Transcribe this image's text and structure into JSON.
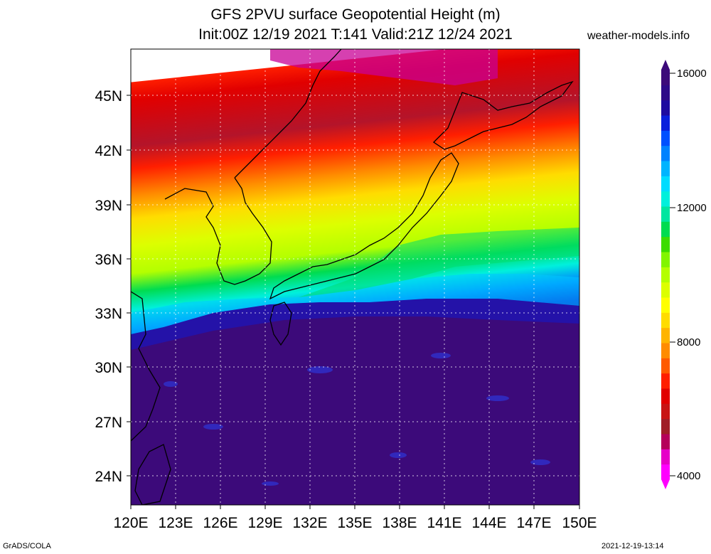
{
  "header": {
    "title": "GFS 2PVU surface Geopotential Height (m)",
    "subtitle": "Init:00Z 12/19 2021 T:141 Valid:21Z 12/24 2021",
    "site": "weather-models.info"
  },
  "map": {
    "lat_labels": [
      "45N",
      "42N",
      "39N",
      "36N",
      "33N",
      "30N",
      "27N",
      "24N"
    ],
    "lon_labels": [
      "120E",
      "123E",
      "126E",
      "129E",
      "132E",
      "135E",
      "138E",
      "141E",
      "144E",
      "147E",
      "150E"
    ],
    "lat_range": [
      22.5,
      47.5
    ],
    "lon_range": [
      120,
      150
    ],
    "region": "Japan / Korea / East China Sea",
    "grid": true
  },
  "colorbar": {
    "labels": [
      "16000",
      "12000",
      "8000",
      "4000"
    ],
    "range": [
      4000,
      16000
    ],
    "colors": [
      "#ff00ff",
      "#e600c8",
      "#b4005a",
      "#a01e28",
      "#c81414",
      "#e10000",
      "#ff1e00",
      "#ff5a00",
      "#ff8c00",
      "#ffb400",
      "#ffdc00",
      "#ffff00",
      "#dcff00",
      "#b4ff00",
      "#82f500",
      "#3cdc00",
      "#00dc50",
      "#00e6a0",
      "#00f0dc",
      "#00dcff",
      "#00b4ff",
      "#0082ff",
      "#0050ff",
      "#0a1edc",
      "#1e0aa0",
      "#2e0a88",
      "#3c0a7a"
    ]
  },
  "footer": {
    "left": "GrADS/COLA",
    "right": "2021-12-19-13:14"
  }
}
